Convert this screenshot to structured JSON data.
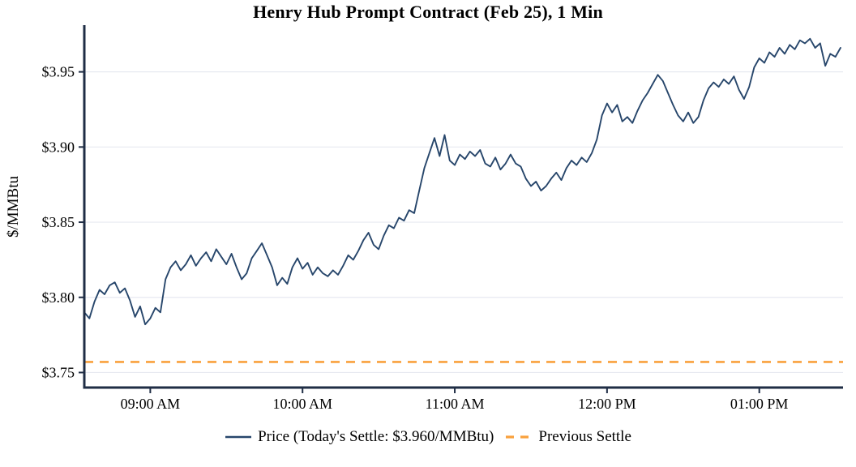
{
  "title": "Henry Hub Prompt Contract (Feb 25), 1 Min",
  "y_axis_label": "$/MMBtu",
  "legend": {
    "price_label": "Price (Today's Settle: $3.960/MMBtu)",
    "previous_settle_label": "Previous Settle"
  },
  "chart_data": {
    "type": "line",
    "title": "Henry Hub Prompt Contract (Feb 25), 1 Min",
    "xlabel": "",
    "ylabel": "$/MMBtu",
    "x_unit": "minutes since midnight",
    "x_domain": [
      514,
      813
    ],
    "y_domain": [
      3.74,
      3.98
    ],
    "grid": "horizontal-only",
    "legend_position": "bottom",
    "x_ticks": [
      {
        "minute": 540,
        "label": "09:00 AM"
      },
      {
        "minute": 600,
        "label": "10:00 AM"
      },
      {
        "minute": 660,
        "label": "11:00 AM"
      },
      {
        "minute": 720,
        "label": "12:00 PM"
      },
      {
        "minute": 780,
        "label": "01:00 PM"
      }
    ],
    "y_ticks": [
      {
        "value": 3.75,
        "label": "$3.75"
      },
      {
        "value": 3.8,
        "label": "$3.80"
      },
      {
        "value": 3.85,
        "label": "$3.85"
      },
      {
        "value": 3.9,
        "label": "$3.90"
      },
      {
        "value": 3.95,
        "label": "$3.95"
      }
    ],
    "previous_settle": 3.757,
    "todays_settle": 3.96,
    "series": [
      {
        "name": "Price",
        "start_minute": 514,
        "step_minutes": 2,
        "values": [
          3.79,
          3.786,
          3.797,
          3.805,
          3.802,
          3.808,
          3.81,
          3.803,
          3.806,
          3.798,
          3.787,
          3.794,
          3.782,
          3.786,
          3.793,
          3.79,
          3.812,
          3.82,
          3.824,
          3.818,
          3.822,
          3.828,
          3.821,
          3.826,
          3.83,
          3.824,
          3.832,
          3.827,
          3.822,
          3.829,
          3.82,
          3.812,
          3.816,
          3.826,
          3.831,
          3.836,
          3.828,
          3.82,
          3.808,
          3.813,
          3.809,
          3.82,
          3.826,
          3.819,
          3.823,
          3.815,
          3.82,
          3.816,
          3.814,
          3.818,
          3.815,
          3.821,
          3.828,
          3.825,
          3.831,
          3.838,
          3.843,
          3.835,
          3.832,
          3.841,
          3.848,
          3.846,
          3.853,
          3.851,
          3.858,
          3.856,
          3.871,
          3.886,
          3.896,
          3.906,
          3.894,
          3.908,
          3.891,
          3.888,
          3.895,
          3.892,
          3.897,
          3.894,
          3.898,
          3.889,
          3.887,
          3.893,
          3.885,
          3.889,
          3.895,
          3.889,
          3.887,
          3.879,
          3.874,
          3.877,
          3.871,
          3.874,
          3.879,
          3.883,
          3.878,
          3.886,
          3.891,
          3.888,
          3.893,
          3.89,
          3.896,
          3.905,
          3.921,
          3.929,
          3.923,
          3.928,
          3.917,
          3.92,
          3.916,
          3.924,
          3.931,
          3.936,
          3.942,
          3.948,
          3.944,
          3.936,
          3.928,
          3.921,
          3.917,
          3.923,
          3.916,
          3.92,
          3.931,
          3.939,
          3.943,
          3.94,
          3.945,
          3.942,
          3.947,
          3.938,
          3.932,
          3.94,
          3.953,
          3.959,
          3.956,
          3.963,
          3.96,
          3.966,
          3.962,
          3.968,
          3.965,
          3.971,
          3.969,
          3.972,
          3.966,
          3.969,
          3.954,
          3.962,
          3.96,
          3.966
        ]
      }
    ],
    "colors": {
      "price": "#27466b",
      "previous_settle": "#f9a13d",
      "grid": "#e7e9f0",
      "axis": "#1f2d45"
    }
  }
}
